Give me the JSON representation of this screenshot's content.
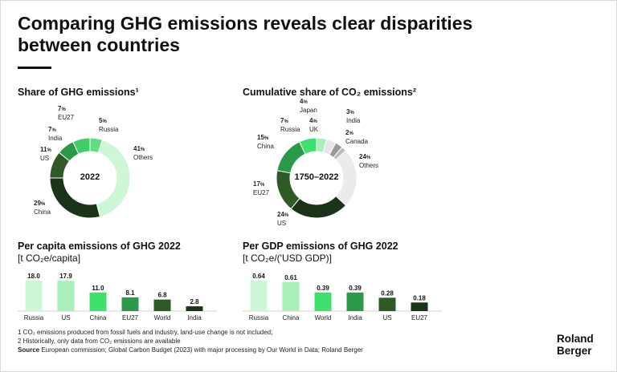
{
  "title": "Comparing GHG emissions reveals clear disparities between countries",
  "sections": {
    "share": {
      "title": "Share of GHG emissions¹",
      "center": "2022"
    },
    "cumulative": {
      "title": "Cumulative share of CO₂ emissions²",
      "center": "1750–2022"
    },
    "per_capita": {
      "title": "Per capita emissions of GHG 2022",
      "unit": "[t CO₂e/capita]"
    },
    "per_gdp": {
      "title": "Per GDP emissions of GHG 2022",
      "unit": "[t CO₂e/('USD GDP)]"
    }
  },
  "chart_data": [
    {
      "type": "pie",
      "title": "Share of GHG emissions¹",
      "center_label": "2022",
      "percent_sign": "%",
      "slices": [
        {
          "name": "Russia",
          "value": 5,
          "color": "#5ee07f"
        },
        {
          "name": "Others",
          "value": 41,
          "color": "#cdf7d6"
        },
        {
          "name": "China",
          "value": 29,
          "color": "#1b3318"
        },
        {
          "name": "US",
          "value": 11,
          "color": "#2f5a26"
        },
        {
          "name": "India",
          "value": 7,
          "color": "#2a9a49"
        },
        {
          "name": "EU27",
          "value": 7,
          "color": "#3fcf68"
        }
      ]
    },
    {
      "type": "pie",
      "title": "Cumulative share of CO₂ emissions²",
      "center_label": "1750–2022",
      "percent_sign": "%",
      "slices": [
        {
          "name": "UK",
          "value": 4,
          "color": "#a9efba"
        },
        {
          "name": "Japan",
          "value": 4,
          "color": "#e6e6e6"
        },
        {
          "name": "India",
          "value": 3,
          "color": "#9a9a9a"
        },
        {
          "name": "Canada",
          "value": 2,
          "color": "#bdbdbd"
        },
        {
          "name": "Others",
          "value": 24,
          "color": "#ebebeb"
        },
        {
          "name": "US",
          "value": 24,
          "color": "#1b3318"
        },
        {
          "name": "EU27",
          "value": 17,
          "color": "#2f5a26"
        },
        {
          "name": "China",
          "value": 15,
          "color": "#2a9a49"
        },
        {
          "name": "Russia",
          "value": 7,
          "color": "#3fe06c"
        }
      ]
    },
    {
      "type": "bar",
      "title": "Per capita emissions of GHG 2022",
      "ylabel": "[t CO₂e/capita]",
      "categories": [
        "Russia",
        "US",
        "China",
        "EU27",
        "World",
        "India"
      ],
      "values": [
        18.0,
        17.9,
        11.0,
        8.1,
        6.8,
        2.8
      ],
      "value_labels": [
        "18.0",
        "17.9",
        "11.0",
        "8.1",
        "6.8",
        "2.8"
      ],
      "colors": [
        "#cdf7d6",
        "#a9efba",
        "#3fe06c",
        "#2a9a49",
        "#2f5a26",
        "#1b3318"
      ],
      "ylim": [
        0,
        18.0
      ]
    },
    {
      "type": "bar",
      "title": "Per GDP emissions of GHG 2022",
      "ylabel": "[t CO₂e/('USD GDP)]",
      "categories": [
        "Russia",
        "China",
        "World",
        "India",
        "US",
        "EU27"
      ],
      "values": [
        0.64,
        0.61,
        0.39,
        0.39,
        0.28,
        0.18
      ],
      "value_labels": [
        "0.64",
        "0.61",
        "0.39",
        "0.39",
        "0.28",
        "0.18"
      ],
      "colors": [
        "#cdf7d6",
        "#a9efba",
        "#3fe06c",
        "#2a9a49",
        "#2f5a26",
        "#1b3318"
      ],
      "ylim": [
        0,
        0.64
      ]
    }
  ],
  "donut1_labels": [
    {
      "pct": "7",
      "name": "EU27"
    },
    {
      "pct": "5",
      "name": "Russia"
    },
    {
      "pct": "7",
      "name": "India"
    },
    {
      "pct": "41",
      "name": "Others"
    },
    {
      "pct": "11",
      "name": "US"
    },
    {
      "pct": "29",
      "name": "China"
    }
  ],
  "donut2_labels": [
    {
      "pct": "4",
      "name": "Japan"
    },
    {
      "pct": "3",
      "name": "India"
    },
    {
      "pct": "7",
      "name": "Russia"
    },
    {
      "pct": "4",
      "name": "UK"
    },
    {
      "pct": "2",
      "name": "Canada"
    },
    {
      "pct": "15",
      "name": "China"
    },
    {
      "pct": "24",
      "name": "Others"
    },
    {
      "pct": "17",
      "name": "EU27"
    },
    {
      "pct": "24",
      "name": "US"
    }
  ],
  "footnotes": {
    "note1": "1   CO₂ emissions produced from fossil fuels and industry, land-use change is not included;",
    "note2": "2  Historically, only data from CO₂ emissions are available",
    "source_label": "Source",
    "source_text": " European commission; Global Carbon Budget (2023) with major processing by Our World in Data; Roland Berger"
  },
  "logo": {
    "line1": "Roland",
    "line2": "Berger"
  }
}
